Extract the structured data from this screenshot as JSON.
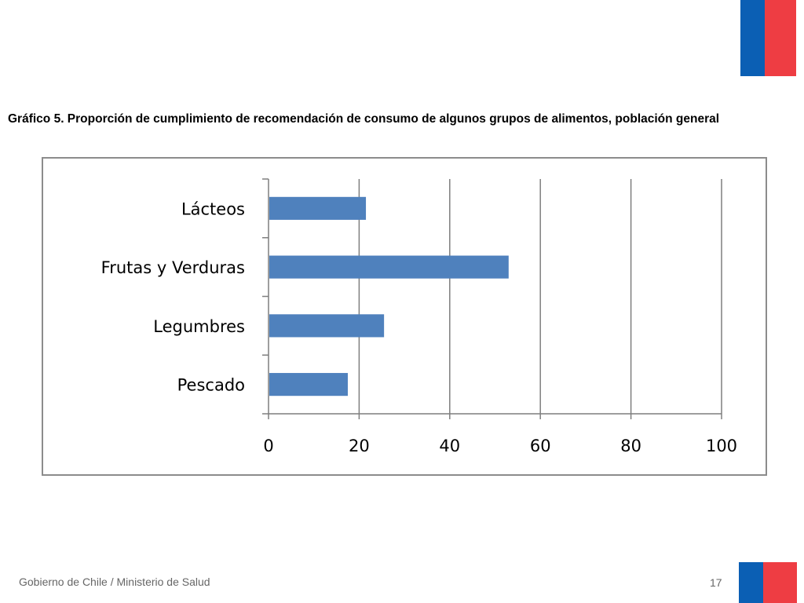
{
  "colors": {
    "flag_blue": "#0b5fb4",
    "flag_red": "#ee3d43",
    "bar": "#4f81bd",
    "grid": "#7f7f7f"
  },
  "title": "Gráfico 5. Proporción de cumplimiento de recomendación de consumo de algunos grupos de alimentos, población general",
  "footer": {
    "org": "Gobierno de Chile / Ministerio de Salud",
    "page": "17"
  },
  "chart_data": {
    "type": "bar",
    "orientation": "horizontal",
    "categories": [
      "Lácteos",
      "Frutas y Verduras",
      "Legumbres",
      "Pescado"
    ],
    "values": [
      21.5,
      53,
      25.5,
      17.5
    ],
    "xlim": [
      0,
      100
    ],
    "xticks": [
      "0",
      "20",
      "40",
      "60",
      "80",
      "100"
    ],
    "grid": true,
    "legend": "none"
  }
}
